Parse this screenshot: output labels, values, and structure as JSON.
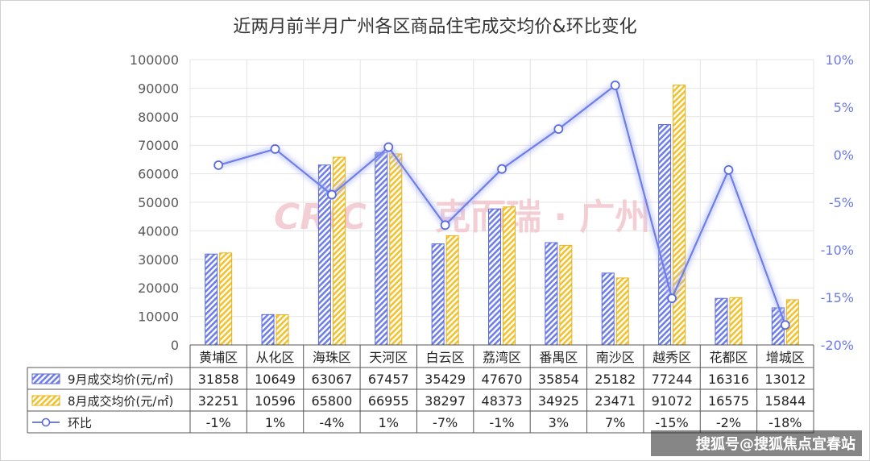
{
  "chart_data": {
    "type": "bar+line",
    "title": "近两月前半月广州各区商品住宅成交均价&环比变化",
    "categories": [
      "黄埔区",
      "从化区",
      "海珠区",
      "天河区",
      "白云区",
      "荔湾区",
      "番禺区",
      "南沙区",
      "越秀区",
      "花都区",
      "增城区"
    ],
    "series": [
      {
        "name": "9月成交均价(元/㎡)",
        "type": "bar",
        "axis": "left",
        "color": "#6f7fe8",
        "values": [
          31858,
          10649,
          63067,
          67457,
          35429,
          47670,
          35854,
          25182,
          77244,
          16316,
          13012
        ]
      },
      {
        "name": "8月成交均价(元/㎡)",
        "type": "bar",
        "axis": "left",
        "color": "#f2c230",
        "values": [
          32251,
          10596,
          65800,
          66955,
          38297,
          48373,
          34925,
          23471,
          91072,
          16575,
          15844
        ]
      },
      {
        "name": "环比",
        "type": "line",
        "axis": "right",
        "color": "#6f7fe8",
        "values": [
          -1.1,
          0.6,
          -4.2,
          0.8,
          -7.4,
          -1.5,
          2.7,
          7.3,
          -15.1,
          -1.6,
          -17.9
        ],
        "labels": [
          "-1%",
          "1%",
          "-4%",
          "1%",
          "-7%",
          "-1%",
          "3%",
          "7%",
          "-15%",
          "-2%",
          "-18%"
        ]
      }
    ],
    "y_left": {
      "min": 0,
      "max": 100000,
      "step": 10000,
      "ticks": [
        "0",
        "10000",
        "20000",
        "30000",
        "40000",
        "50000",
        "60000",
        "70000",
        "80000",
        "90000",
        "100000"
      ]
    },
    "y_right": {
      "min": -20,
      "max": 10,
      "step": 5,
      "ticks": [
        "-20%",
        "-15%",
        "-10%",
        "-5%",
        "0%",
        "5%",
        "10%"
      ]
    },
    "grid": true,
    "legend": "data-table"
  },
  "watermark": {
    "logo": "CRIC",
    "text": "克而瑞 · 广州"
  },
  "credit": "搜狐号@搜狐焦点宜春站"
}
